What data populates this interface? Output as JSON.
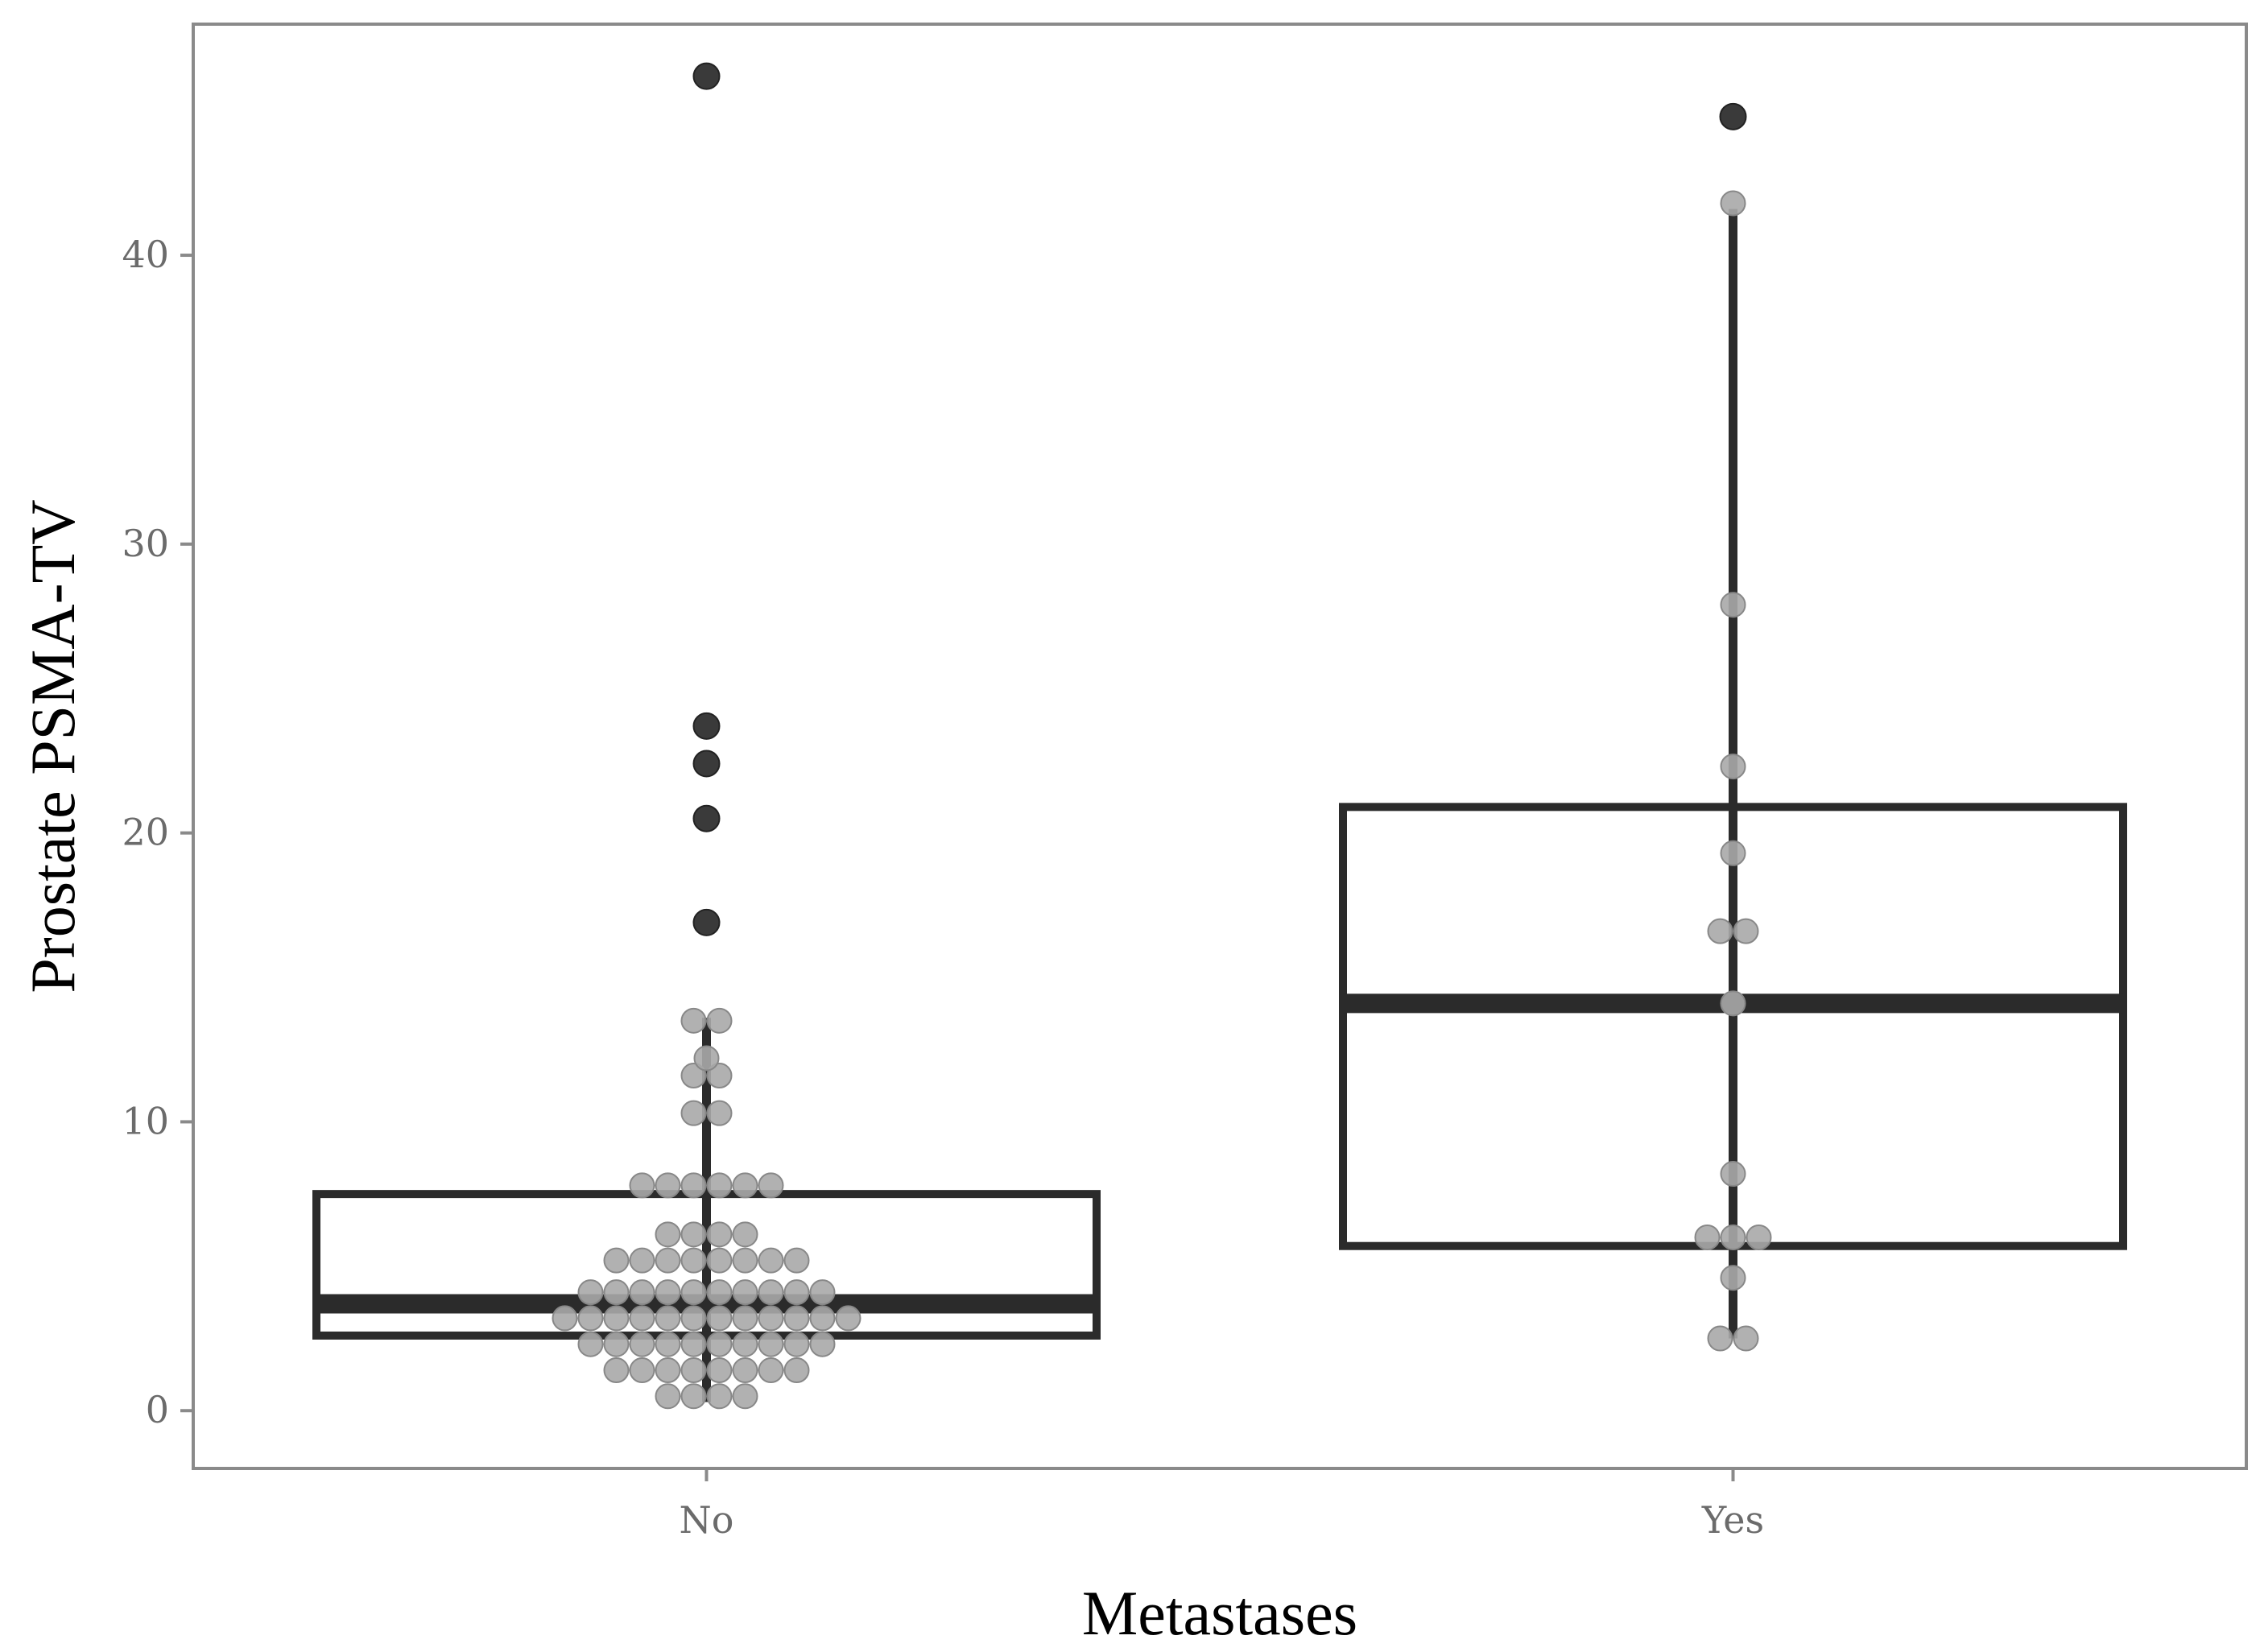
{
  "chart_data": {
    "type": "boxplot",
    "title": "",
    "xlabel": "Metastases",
    "ylabel": "Prostate PSMA-TV",
    "categories": [
      "No",
      "Yes"
    ],
    "ylim": [
      -2,
      48
    ],
    "yticks": [
      0,
      10,
      20,
      30,
      40
    ],
    "ytick_labels": [
      "0",
      "10",
      "20",
      "30",
      "40"
    ],
    "grid": false,
    "legend": "none",
    "boxes": [
      {
        "category": "No",
        "q1": 2.6,
        "median": 3.7,
        "q3": 7.5,
        "whisker_low": 0.3,
        "whisker_high": 13.6,
        "outliers": [
          46.2,
          23.7,
          22.4,
          20.5,
          16.9
        ],
        "points": [
          0.5,
          0.5,
          0.5,
          0.5,
          1.4,
          1.4,
          1.4,
          1.4,
          1.4,
          1.4,
          1.4,
          1.4,
          2.3,
          2.3,
          2.3,
          2.3,
          2.3,
          2.3,
          2.3,
          2.3,
          2.3,
          2.3,
          3.2,
          3.2,
          3.2,
          3.2,
          3.2,
          3.2,
          3.2,
          3.2,
          3.2,
          3.2,
          3.2,
          3.2,
          4.1,
          4.1,
          4.1,
          4.1,
          4.1,
          4.1,
          4.1,
          4.1,
          4.1,
          4.1,
          5.2,
          5.2,
          5.2,
          5.2,
          5.2,
          5.2,
          5.2,
          5.2,
          6.1,
          6.1,
          6.1,
          6.1,
          7.8,
          7.8,
          7.8,
          7.8,
          7.8,
          7.8,
          10.3,
          10.3,
          11.6,
          11.6,
          12.2,
          13.5,
          13.5
        ]
      },
      {
        "category": "Yes",
        "q1": 5.7,
        "median": 14.1,
        "q3": 20.9,
        "whisker_low": 2.5,
        "whisker_high": 41.6,
        "outliers": [
          44.8
        ],
        "points": [
          2.5,
          2.5,
          4.6,
          6.0,
          6.0,
          6.0,
          8.2,
          14.1,
          16.6,
          16.6,
          19.3,
          22.3,
          27.9,
          41.8
        ]
      }
    ],
    "colors": {
      "box": "#2b2b2b",
      "outlier": "#3a3a3a",
      "point_fill": "#a9a9a9",
      "point_stroke": "#888888",
      "panel_border": "#8a8a8a"
    }
  }
}
